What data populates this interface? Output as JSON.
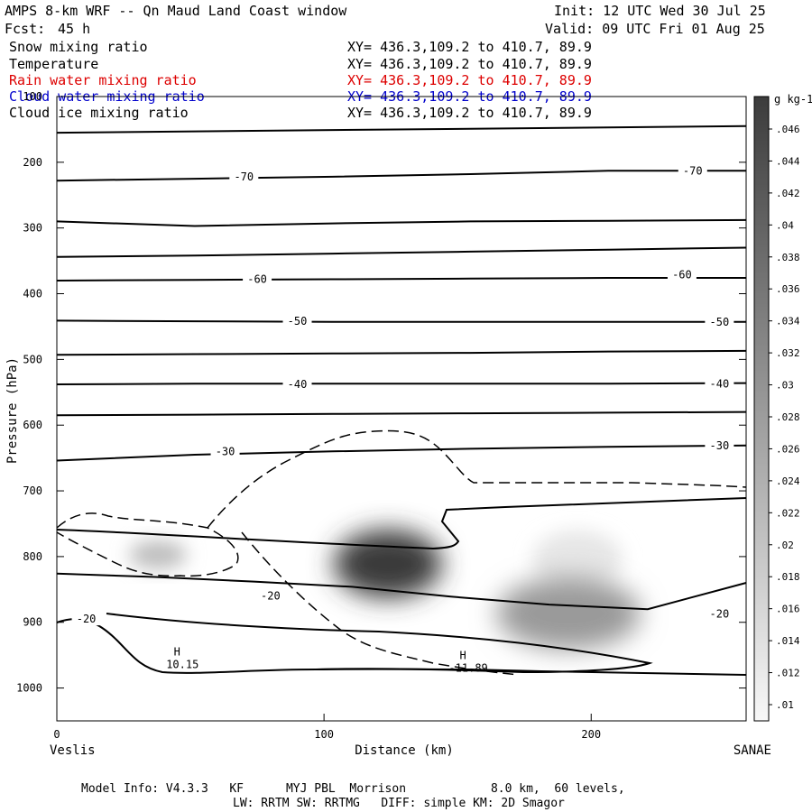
{
  "header": {
    "title": "AMPS 8-km WRF -- Qn Maud Land Coast window",
    "fcst_label": "Fcst:",
    "fcst_value": "45 h",
    "init": "Init: 12 UTC Wed 30 Jul 25",
    "valid": "Valid: 09 UTC Fri 01 Aug 25"
  },
  "fields": [
    {
      "name": "Snow mixing ratio",
      "xy": "XY= 436.3,109.2 to 410.7, 89.9",
      "color": "#000000"
    },
    {
      "name": "Temperature",
      "xy": "XY= 436.3,109.2 to 410.7, 89.9",
      "color": "#000000"
    },
    {
      "name": "Rain water mixing ratio",
      "xy": "XY= 436.3,109.2 to 410.7, 89.9",
      "color": "#dd0000"
    },
    {
      "name": "Cloud water mixing ratio",
      "xy": "XY= 436.3,109.2 to 410.7, 89.9",
      "color": "#0000cc"
    },
    {
      "name": "Cloud ice mixing ratio",
      "xy": "XY= 436.3,109.2 to 410.7, 89.9",
      "color": "#000000"
    }
  ],
  "chart_data": {
    "type": "contour",
    "xlabel": "Distance (km)",
    "ylabel": "Pressure (hPa)",
    "xlim": [
      0,
      258
    ],
    "ylim": [
      100,
      1050
    ],
    "x_ticks": [
      0,
      100,
      200
    ],
    "y_ticks": [
      100,
      200,
      300,
      400,
      500,
      600,
      700,
      800,
      900,
      1000
    ],
    "left_endpoint": "Veslis",
    "right_endpoint": "SANAE",
    "isotherm_labels": [
      {
        "value": "-70",
        "x": 70,
        "p": 222
      },
      {
        "value": "-70",
        "x": 238,
        "p": 213
      },
      {
        "value": "-60",
        "x": 75,
        "p": 378
      },
      {
        "value": "-60",
        "x": 234,
        "p": 371
      },
      {
        "value": "-50",
        "x": 90,
        "p": 442
      },
      {
        "value": "-50",
        "x": 248,
        "p": 443
      },
      {
        "value": "-40",
        "x": 90,
        "p": 538
      },
      {
        "value": "-40",
        "x": 248,
        "p": 537
      },
      {
        "value": "-30",
        "x": 63,
        "p": 640
      },
      {
        "value": "-30",
        "x": 248,
        "p": 631
      },
      {
        "value": "-20",
        "x": 80,
        "p": 860
      },
      {
        "value": "-20",
        "x": 248,
        "p": 887
      },
      {
        "value": "-20",
        "x": 11,
        "p": 895
      }
    ],
    "isotherms": [
      {
        "p": [
          155,
          145
        ]
      },
      {
        "p": [
          228,
          225,
          222,
          218,
          213,
          213
        ]
      },
      {
        "p": [
          290,
          297,
          293,
          290,
          289,
          288
        ]
      },
      {
        "p": [
          344,
          342,
          339,
          336,
          333,
          330
        ]
      },
      {
        "p": [
          380,
          379,
          378,
          377,
          376,
          376
        ]
      },
      {
        "p": [
          441,
          442,
          443,
          443,
          443,
          443
        ]
      },
      {
        "p": [
          493,
          492,
          491,
          490,
          488,
          487
        ]
      },
      {
        "p": [
          538,
          537,
          537,
          537,
          537,
          536
        ]
      },
      {
        "p": [
          585,
          584,
          583,
          582,
          581,
          580
        ]
      },
      {
        "p": [
          654,
          645,
          640,
          636,
          633,
          631
        ]
      },
      {
        "p": [
          826,
          831,
          838,
          846,
          861,
          873,
          880,
          840
        ]
      }
    ],
    "legend": {
      "title": "g kg-1",
      "levels": [
        ".01",
        ".012",
        ".014",
        ".016",
        ".018",
        ".02",
        ".022",
        ".024",
        ".026",
        ".028",
        ".03",
        ".032",
        ".034",
        ".036",
        ".038",
        ".04",
        ".042",
        ".044",
        ".046"
      ]
    },
    "shaded_maxima": [
      {
        "x": 125,
        "p": 818,
        "value": 0.046
      },
      {
        "x": 190,
        "p": 893,
        "value": 0.032
      },
      {
        "x": 200,
        "p": 800,
        "value": 0.014
      },
      {
        "x": 38,
        "p": 805,
        "value": 0.016
      }
    ],
    "highs": [
      {
        "symbol": "H",
        "value": "10.15",
        "x": 45,
        "p": 970
      },
      {
        "symbol": "H",
        "value": "-11.89",
        "x": 152,
        "p": 975
      }
    ]
  },
  "footer": {
    "line1": "Model Info: V4.3.3   KF      MYJ PBL  Morrison            8.0 km,  60 levels,",
    "line2": "LW: RRTM SW: RRTMG   DIFF: simple KM: 2D Smagor"
  }
}
